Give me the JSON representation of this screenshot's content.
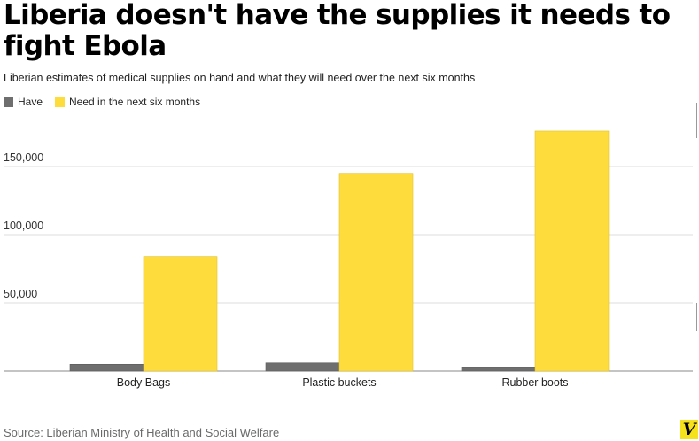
{
  "header": {
    "title": "Liberia doesn't have the supplies it needs to fight Ebola",
    "subtitle": "Liberian estimates of medical supplies on hand and what they will need over the next six months"
  },
  "colors": {
    "have": "#6e6e6e",
    "need": "#fddc3c",
    "grid": "#dcdcdc",
    "axis": "#888888",
    "logo_bg": "#f5e11c"
  },
  "legend": [
    {
      "label": "Have",
      "color": "#6e6e6e"
    },
    {
      "label": "Need in the next six months",
      "color": "#fddc3c"
    }
  ],
  "chart_data": {
    "type": "bar",
    "categories": [
      "Body Bags",
      "Plastic buckets",
      "Rubber boots"
    ],
    "series": [
      {
        "name": "Have",
        "values": [
          5000,
          6000,
          2500
        ]
      },
      {
        "name": "Need in the next six months",
        "values": [
          84000,
          145000,
          176000
        ]
      }
    ],
    "yticks": [
      50000,
      100000,
      150000
    ],
    "ytick_labels": [
      "50,000",
      "100,000",
      "150,000"
    ],
    "ylim": [
      0,
      180000
    ],
    "grid": true,
    "legend_position": "top-left"
  },
  "footer": {
    "source": "Source: Liberian Ministry of Health and Social Welfare",
    "logo_text": "V"
  }
}
